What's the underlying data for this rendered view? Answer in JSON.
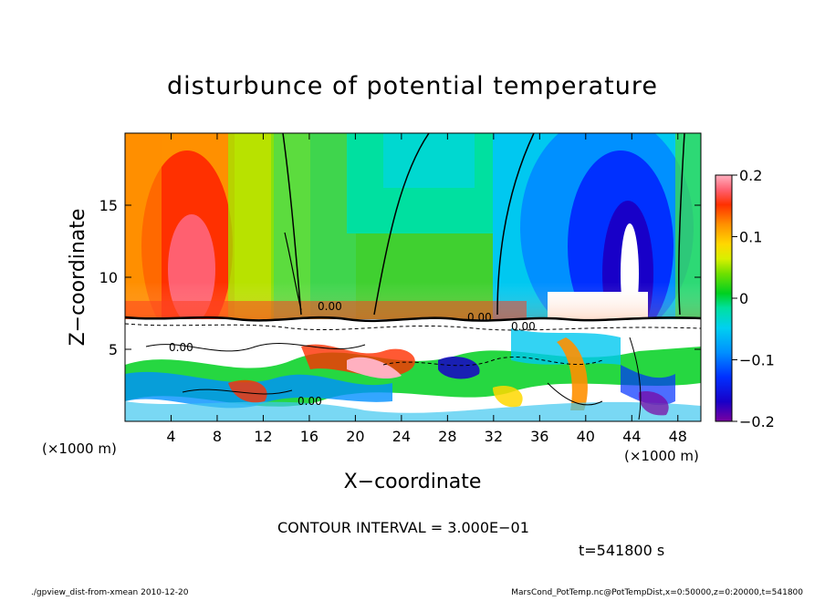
{
  "chart_data": {
    "type": "heatmap",
    "title": "disturbunce of potential temperature",
    "xlabel": "X−coordinate",
    "ylabel": "Z−coordinate",
    "x_unit_left": "(×1000 m)",
    "x_unit_right": "(×1000 m)",
    "xlim": [
      0,
      50
    ],
    "ylim": [
      0,
      20
    ],
    "x_ticks": [
      4,
      8,
      12,
      16,
      20,
      24,
      28,
      32,
      36,
      40,
      44,
      48
    ],
    "x_tick_labels": [
      "4",
      "8",
      "12",
      "16",
      "20",
      "24",
      "28",
      "32",
      "36",
      "40",
      "44",
      "48"
    ],
    "y_ticks": [
      5,
      10,
      15
    ],
    "y_tick_labels": [
      "5",
      "10",
      "15"
    ],
    "colorbar": {
      "range": [
        -0.2,
        0.2
      ],
      "tick_values": [
        0.2,
        0.1,
        0,
        -0.1,
        -0.2
      ],
      "tick_labels": [
        "0.2",
        "0.1",
        "0",
        "−0.1",
        "−0.2"
      ],
      "colors": [
        "#7a00a0",
        "#1800c8",
        "#0030ff",
        "#0090ff",
        "#00d0f0",
        "#00e0a0",
        "#00d020",
        "#70e000",
        "#d8f000",
        "#ffd800",
        "#ff9000",
        "#ff3000",
        "#ff6070",
        "#ffb0c0"
      ]
    },
    "contour_interval": "CONTOUR INTERVAL = 3.000E−01",
    "time_label": "t=541800 s",
    "contour_labels": [
      "0.00",
      "0.00",
      "0.00",
      "0.00",
      "0.00"
    ]
  },
  "footer": {
    "left": "./gpview_dist-from-xmean  2010-12-20",
    "right": "MarsCond_PotTemp.nc@PotTempDist,x=0:50000,z=0:20000,t=541800"
  }
}
